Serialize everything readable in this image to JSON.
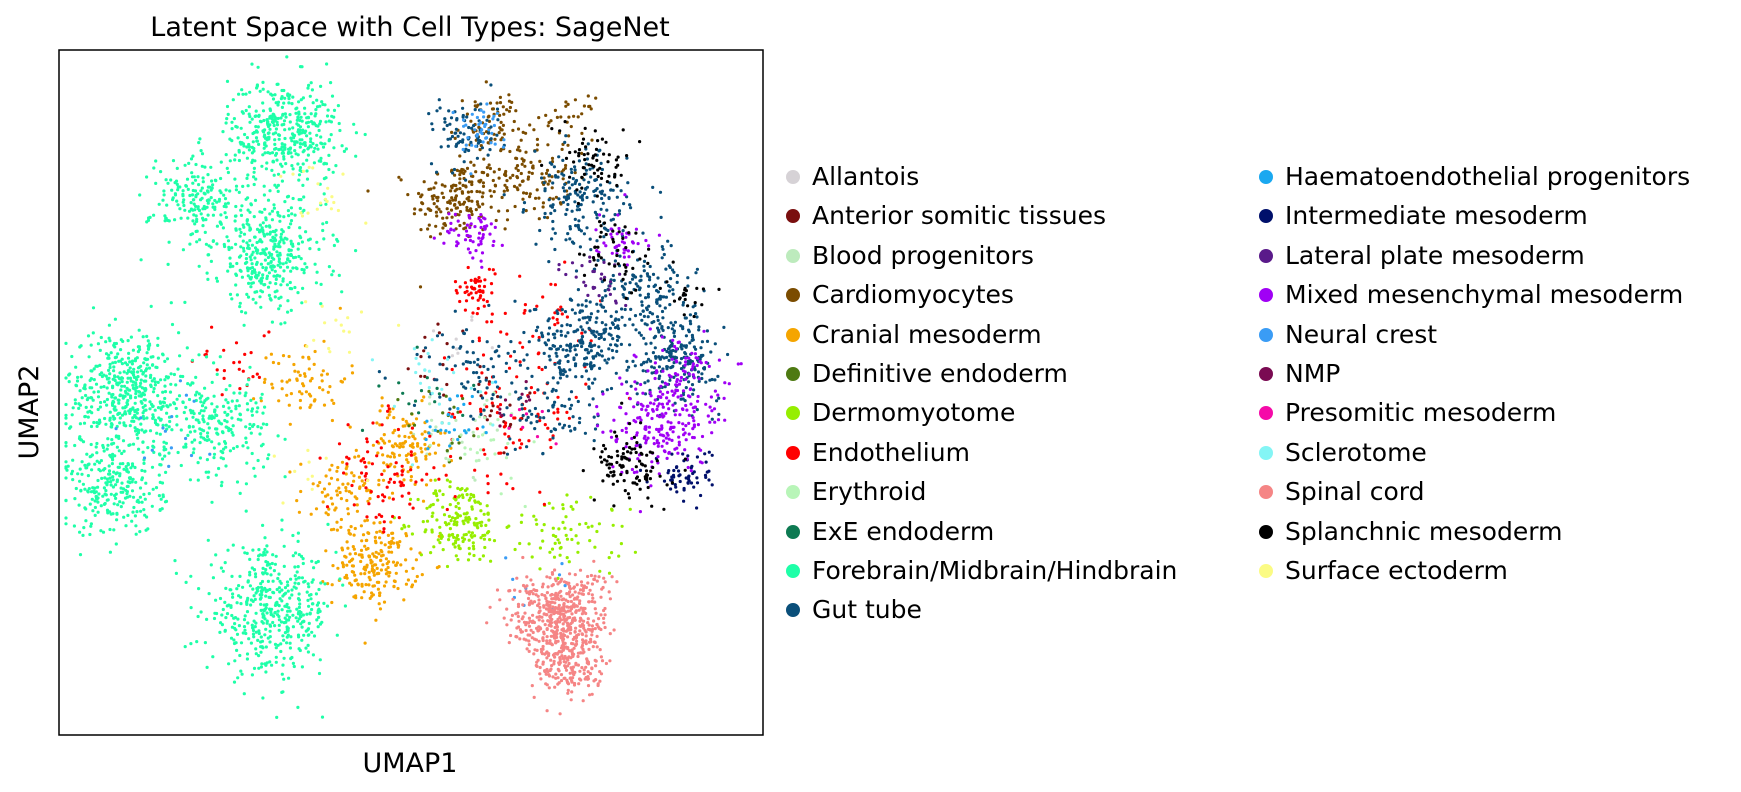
{
  "chart_data": {
    "type": "scatter",
    "title": "Latent Space with Cell Types: SageNet",
    "xlabel": "UMAP1",
    "ylabel": "UMAP2",
    "xlim": [
      0,
      100
    ],
    "ylim": [
      0,
      100
    ],
    "grid": false,
    "ticks": "none",
    "legend_placement": "right, outside plot, two columns",
    "series": [
      {
        "name": "Allantois",
        "color": "#d6d2d6",
        "clusters": [
          [
            56,
            58,
            2.0,
            8
          ]
        ]
      },
      {
        "name": "Anterior somitic tissues",
        "color": "#7a0f0f",
        "clusters": [
          [
            62,
            48,
            4.0,
            20
          ],
          [
            54,
            56,
            3.0,
            12
          ]
        ]
      },
      {
        "name": "Blood progenitors",
        "color": "#bdebbd",
        "clusters": [
          [
            58,
            44,
            4.0,
            25
          ]
        ]
      },
      {
        "name": "Cardiomyocytes",
        "color": "#7b4c00",
        "clusters": [
          [
            56,
            78,
            3.0,
            150
          ],
          [
            66,
            82,
            3.5,
            140
          ],
          [
            61,
            89,
            2.5,
            70
          ],
          [
            73,
            90,
            1.5,
            25
          ]
        ]
      },
      {
        "name": "Cranial mesoderm",
        "color": "#f5a500",
        "clusters": [
          [
            45,
            25,
            3.0,
            200
          ],
          [
            40,
            35,
            3.0,
            80
          ],
          [
            49,
            42,
            3.0,
            120
          ],
          [
            35,
            52,
            3.0,
            70
          ]
        ]
      },
      {
        "name": "Definitive endoderm",
        "color": "#4e7a12",
        "clusters": [
          [
            55,
            45,
            3.0,
            20
          ]
        ]
      },
      {
        "name": "Dermomyotome",
        "color": "#96ee00",
        "clusters": [
          [
            57,
            31,
            3.0,
            170
          ],
          [
            70,
            30,
            3.0,
            40
          ],
          [
            77,
            30,
            3.0,
            30
          ]
        ]
      },
      {
        "name": "Endothelium",
        "color": "#ff0000",
        "clusters": [
          [
            59,
            65,
            1.5,
            50
          ],
          [
            65,
            47,
            5.0,
            90
          ],
          [
            46,
            38,
            4.0,
            80
          ],
          [
            68,
            60,
            5.0,
            40
          ],
          [
            25,
            55,
            3.0,
            25
          ]
        ]
      },
      {
        "name": "Erythroid",
        "color": "#b8f5b8",
        "clusters": [
          [
            60,
            42,
            3.0,
            30
          ]
        ]
      },
      {
        "name": "ExE endoderm",
        "color": "#0d7a52",
        "clusters": [
          [
            52,
            50,
            3.0,
            15
          ]
        ]
      },
      {
        "name": "Forebrain/Midbrain/Hindbrain",
        "color": "#1effa8",
        "clusters": [
          [
            32,
            88,
            4.0,
            400
          ],
          [
            10,
            50,
            4.5,
            500
          ],
          [
            30,
            70,
            4.0,
            350
          ],
          [
            30,
            18,
            4.5,
            450
          ],
          [
            23,
            45,
            3.5,
            200
          ],
          [
            20,
            78,
            3.5,
            200
          ],
          [
            8,
            36,
            3.5,
            250
          ]
        ]
      },
      {
        "name": "Gut tube",
        "color": "#0a4f7a",
        "clusters": [
          [
            74,
            78,
            3.5,
            180
          ],
          [
            74,
            57,
            3.5,
            220
          ],
          [
            88,
            55,
            3.0,
            200
          ],
          [
            83,
            64,
            3.5,
            160
          ],
          [
            58,
            88,
            2.5,
            80
          ],
          [
            58,
            53,
            4.0,
            80
          ],
          [
            71,
            47,
            3.0,
            60
          ]
        ]
      },
      {
        "name": "Haematoendothelial progenitors",
        "color": "#1aa8f0",
        "clusters": [
          [
            56,
            45,
            3.0,
            25
          ]
        ]
      },
      {
        "name": "Intermediate mesoderm",
        "color": "#00106b",
        "clusters": [
          [
            89,
            38,
            2.0,
            60
          ]
        ]
      },
      {
        "name": "Lateral plate mesoderm",
        "color": "#5a1a8a",
        "clusters": [
          [
            77,
            66,
            2.5,
            30
          ]
        ]
      },
      {
        "name": "Mixed mesenchymal mesoderm",
        "color": "#a000f5",
        "clusters": [
          [
            59,
            73,
            2.0,
            60
          ],
          [
            85,
            45,
            3.5,
            180
          ],
          [
            88,
            52,
            3.0,
            100
          ],
          [
            80,
            73,
            2.0,
            40
          ]
        ]
      },
      {
        "name": "Neural crest",
        "color": "#3a9cf5",
        "clusters": [
          [
            60,
            88,
            2.0,
            40
          ],
          [
            15,
            45,
            3.0,
            15
          ],
          [
            67,
            23,
            3.0,
            10
          ]
        ]
      },
      {
        "name": "NMP",
        "color": "#7a0a52",
        "clusters": [
          [
            64,
            49,
            2.0,
            10
          ]
        ]
      },
      {
        "name": "Presomitic mesoderm",
        "color": "#f50aa8",
        "clusters": [
          [
            66,
            45,
            2.0,
            8
          ]
        ]
      },
      {
        "name": "Sclerotome",
        "color": "#84f5f5",
        "clusters": [
          [
            53,
            52,
            4.0,
            25
          ]
        ]
      },
      {
        "name": "Spinal cord",
        "color": "#f58585",
        "clusters": [
          [
            71,
            17,
            3.5,
            500
          ],
          [
            73,
            10,
            2.5,
            150
          ]
        ]
      },
      {
        "name": "Splanchnic mesoderm",
        "color": "#000000",
        "clusters": [
          [
            76,
            84,
            2.5,
            60
          ],
          [
            81,
            39,
            2.5,
            100
          ],
          [
            79,
            70,
            3.0,
            50
          ],
          [
            89,
            64,
            1.5,
            20
          ]
        ]
      },
      {
        "name": "Surface ectoderm",
        "color": "#fbfb84",
        "clusters": [
          [
            37,
            80,
            2.5,
            20
          ],
          [
            40,
            60,
            2.5,
            15
          ],
          [
            36,
            38,
            2.5,
            10
          ]
        ]
      }
    ]
  }
}
